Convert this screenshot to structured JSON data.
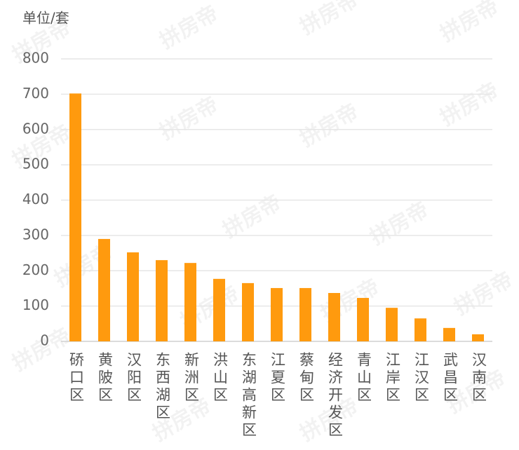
{
  "chart_data": {
    "type": "bar",
    "y_axis_label": "单位/套",
    "watermark": "拼房帝",
    "categories": [
      "硚口区",
      "黄陂区",
      "汉阳区",
      "东西湖区",
      "新洲区",
      "洪山区",
      "东湖高新区",
      "江夏区",
      "蔡甸区",
      "经济开发区",
      "青山区",
      "江岸区",
      "江汉区",
      "武昌区",
      "汉南区"
    ],
    "values": [
      702,
      290,
      252,
      230,
      222,
      177,
      165,
      151,
      151,
      137,
      123,
      95,
      65,
      38,
      20
    ],
    "color": "#ff9a0e",
    "ylim": [
      0,
      800
    ],
    "yticks": [
      0,
      100,
      200,
      300,
      400,
      500,
      600,
      700,
      800
    ],
    "grid": true
  }
}
